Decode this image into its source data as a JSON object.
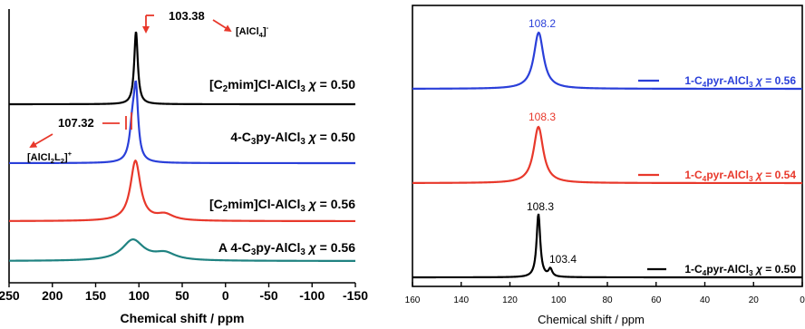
{
  "chart_data": [
    {
      "type": "line",
      "xlabel": "Chemical shift / ppm",
      "ylabel": "",
      "xlim": [
        250,
        -150
      ],
      "x_reversed": true,
      "xticks": [
        "250",
        "200",
        "150",
        "100",
        "50",
        "0",
        "-50",
        "-100",
        "-150"
      ],
      "series": [
        {
          "name": "[C2mim]Cl-AlCl3 χ = 0.50",
          "color": "#000000",
          "peak_ppm": 103.38,
          "peak_width": 2.5,
          "peak_height": 1.0,
          "shoulder": null
        },
        {
          "name": "4-C3py-AlCl3 χ = 0.50",
          "color": "#2a3fd9",
          "peak_ppm": 103.38,
          "peak_width": 3,
          "peak_height": 1.0,
          "shoulder": {
            "ppm": 107.32,
            "height": 0.55,
            "width": 4
          }
        },
        {
          "name": "[C2mim]Cl-AlCl3 χ = 0.56",
          "color": "#e8382b",
          "peak_ppm": 104,
          "peak_width": 7,
          "peak_height": 0.6,
          "shoulder": {
            "ppm": 70,
            "height": 0.06,
            "width": 12
          }
        },
        {
          "name": "A 4-C3py-AlCl3 χ = 0.56",
          "color": "#1f8281",
          "peak_ppm": 107,
          "peak_width": 15,
          "peak_height": 0.24,
          "shoulder": {
            "ppm": 70,
            "height": 0.08,
            "width": 15
          }
        }
      ],
      "annotations": [
        {
          "text": "103.38",
          "target_ppm": 103.38
        },
        {
          "text": "[AlCl4]-"
        },
        {
          "text": "107.32",
          "target_ppm": 107.32
        },
        {
          "text": "[AlCl2L2]+"
        }
      ]
    },
    {
      "type": "line",
      "xlabel": "Chemical shift / ppm",
      "ylabel": "",
      "xlim": [
        160,
        0
      ],
      "x_reversed": true,
      "xticks": [
        "160",
        "140",
        "120",
        "100",
        "80",
        "60",
        "40",
        "20",
        "0"
      ],
      "series": [
        {
          "name": "1-C4pyr-AlCl3 χ = 0.56",
          "color": "#2a3fd9",
          "peak_ppm": 108.2,
          "peak_label": "108.2"
        },
        {
          "name": "1-C4pyr-AlCl3 χ = 0.54",
          "color": "#e8382b",
          "peak_ppm": 108.3,
          "peak_label": "108.3"
        },
        {
          "name": "1-C4pyr-AlCl3 χ = 0.50",
          "color": "#000000",
          "peak_ppm": 108.3,
          "peak_label": "108.3",
          "shoulder_ppm": 103.4,
          "shoulder_label": "103.4"
        }
      ]
    }
  ]
}
